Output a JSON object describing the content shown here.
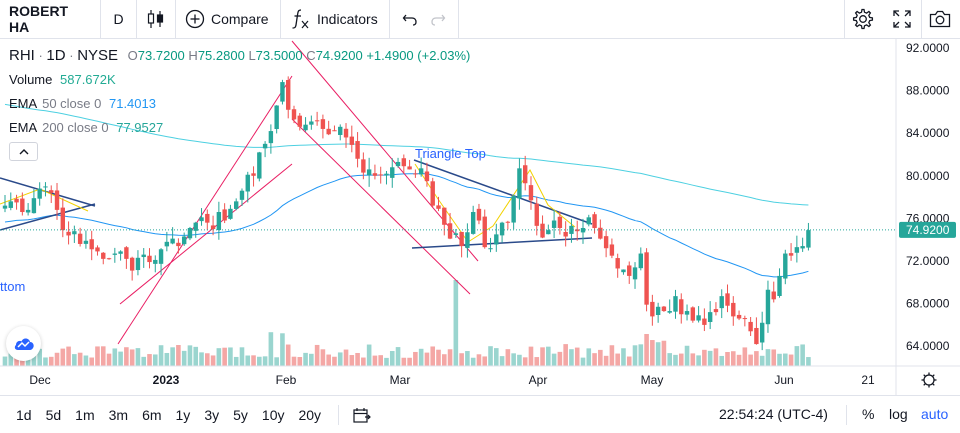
{
  "toolbar": {
    "symbol": "ROBERT HA",
    "interval": "D",
    "compare_label": "Compare",
    "indicators_label": "Indicators",
    "icons": [
      "candles-icon",
      "plus-circle-icon",
      "fx-icon",
      "undo-icon",
      "redo-icon",
      "settings-icon",
      "fullscreen-icon",
      "camera-icon"
    ]
  },
  "legend": {
    "ticker": "RHI",
    "interval": "1D",
    "exchange": "NYSE",
    "open_label": "O",
    "open": "73.7200",
    "high_label": "H",
    "high": "75.2800",
    "low_label": "L",
    "low": "73.5000",
    "close_label": "C",
    "close": "74.9200",
    "change": "+1.4900 (+2.03%)",
    "volume_label": "Volume",
    "volume": "587.672K",
    "ema50_label": "EMA",
    "ema50_params": "50 close 0",
    "ema50": "71.4013",
    "ema200_label": "EMA",
    "ema200_params": "200 close 0",
    "ema200": "77.9527"
  },
  "annotations": {
    "triangle_top": "Triangle Top",
    "bottom_fragment": "ttom"
  },
  "price_axis": {
    "labels": [
      "92.0000",
      "88.0000",
      "84.0000",
      "80.0000",
      "76.0000",
      "72.0000",
      "68.0000",
      "64.0000"
    ],
    "last_price": "74.9200"
  },
  "time_axis": {
    "labels": [
      {
        "text": "Dec",
        "bold": false
      },
      {
        "text": "2023",
        "bold": true
      },
      {
        "text": "Feb",
        "bold": false
      },
      {
        "text": "Mar",
        "bold": false
      },
      {
        "text": "Apr",
        "bold": false
      },
      {
        "text": "May",
        "bold": false
      },
      {
        "text": "Jun",
        "bold": false
      },
      {
        "text": "21",
        "bold": false
      }
    ]
  },
  "colors": {
    "up": "#26a69a",
    "down": "#ef5350",
    "ema50": "#2196f3",
    "ema200": "#4dd0e1",
    "pattern": "#e91e63",
    "accent": "#2962ff"
  },
  "bottom": {
    "ranges": [
      "1d",
      "5d",
      "1m",
      "3m",
      "6m",
      "1y",
      "3y",
      "5y",
      "10y",
      "20y"
    ],
    "clock": "22:54:24 (UTC-4)",
    "percent": "%",
    "log": "log",
    "auto": "auto"
  },
  "chart_data": {
    "type": "candlestick",
    "symbol": "RHI",
    "ylim": [
      62,
      93
    ],
    "x": [
      "2022-11-21",
      "2022-11-22",
      "2022-11-23",
      "2022-11-25",
      "2022-11-28",
      "2022-11-29",
      "2022-11-30",
      "2022-12-01",
      "2022-12-02",
      "2022-12-05",
      "2022-12-06",
      "2022-12-07",
      "2022-12-08",
      "2022-12-09",
      "2022-12-12",
      "2022-12-13",
      "2022-12-14",
      "2022-12-15",
      "2022-12-16",
      "2022-12-19",
      "2022-12-20",
      "2022-12-21",
      "2022-12-22",
      "2022-12-23",
      "2022-12-27",
      "2022-12-28",
      "2022-12-29",
      "2022-12-30",
      "2023-01-03",
      "2023-01-04",
      "2023-01-05",
      "2023-01-06",
      "2023-01-09",
      "2023-01-10",
      "2023-01-11",
      "2023-01-12",
      "2023-01-13",
      "2023-01-17",
      "2023-01-18",
      "2023-01-19",
      "2023-01-20",
      "2023-01-23",
      "2023-01-24",
      "2023-01-25",
      "2023-01-26",
      "2023-01-27",
      "2023-01-30",
      "2023-01-31",
      "2023-02-01",
      "2023-02-02",
      "2023-02-03",
      "2023-02-06",
      "2023-02-07",
      "2023-02-08",
      "2023-02-09",
      "2023-02-10",
      "2023-02-13",
      "2023-02-14",
      "2023-02-15",
      "2023-02-16",
      "2023-02-17",
      "2023-02-21",
      "2023-02-22",
      "2023-02-23",
      "2023-02-24",
      "2023-02-27",
      "2023-02-28",
      "2023-03-01",
      "2023-03-02",
      "2023-03-03",
      "2023-03-06",
      "2023-03-07",
      "2023-03-08",
      "2023-03-09",
      "2023-03-10",
      "2023-03-13",
      "2023-03-14",
      "2023-03-15",
      "2023-03-16",
      "2023-03-17",
      "2023-03-20",
      "2023-03-21",
      "2023-03-22",
      "2023-03-23",
      "2023-03-24",
      "2023-03-27",
      "2023-03-28",
      "2023-03-29",
      "2023-03-30",
      "2023-03-31",
      "2023-04-03",
      "2023-04-04",
      "2023-04-05",
      "2023-04-06",
      "2023-04-10",
      "2023-04-11",
      "2023-04-12",
      "2023-04-13",
      "2023-04-14",
      "2023-04-17",
      "2023-04-18",
      "2023-04-19",
      "2023-04-20",
      "2023-04-21",
      "2023-04-24",
      "2023-04-25",
      "2023-04-26",
      "2023-04-27",
      "2023-04-28",
      "2023-05-01",
      "2023-05-02",
      "2023-05-03",
      "2023-05-04",
      "2023-05-05",
      "2023-05-08",
      "2023-05-09",
      "2023-05-10",
      "2023-05-11",
      "2023-05-12",
      "2023-05-15",
      "2023-05-16",
      "2023-05-17",
      "2023-05-18",
      "2023-05-19",
      "2023-05-22",
      "2023-05-23",
      "2023-05-24",
      "2023-05-25",
      "2023-05-26",
      "2023-05-30",
      "2023-05-31",
      "2023-06-01",
      "2023-06-02",
      "2023-06-05",
      "2023-06-06",
      "2023-06-07",
      "2023-06-08",
      "2023-06-09",
      "2023-06-12",
      "2023-06-13"
    ],
    "close": [
      77.2,
      77.6,
      77.5,
      76.6,
      76.8,
      77.9,
      78.8,
      79.0,
      78.4,
      76.8,
      74.9,
      74.4,
      74.8,
      73.6,
      73.9,
      73.1,
      72.9,
      72.2,
      72.2,
      72.7,
      72.9,
      72.2,
      71.1,
      72.3,
      72.6,
      71.9,
      72.1,
      73.1,
      73.8,
      74.1,
      73.4,
      74.3,
      75.1,
      75.6,
      76.1,
      75.6,
      75.0,
      76.6,
      75.8,
      76.9,
      77.6,
      78.6,
      80.1,
      80.0,
      82.2,
      83.0,
      84.2,
      86.6,
      88.8,
      86.2,
      85.3,
      84.6,
      84.8,
      85.1,
      85.2,
      84.4,
      83.9,
      84.2,
      84.6,
      83.6,
      82.9,
      81.6,
      80.3,
      80.6,
      80.0,
      80.1,
      80.2,
      80.8,
      81.3,
      80.9,
      80.6,
      80.2,
      80.7,
      79.5,
      77.2,
      76.9,
      75.4,
      74.1,
      74.6,
      73.4,
      74.7,
      76.6,
      75.8,
      73.3,
      73.2,
      74.5,
      75.6,
      75.6,
      78.1,
      80.7,
      79.3,
      77.7,
      75.3,
      74.2,
      74.9,
      75.8,
      75.1,
      74.3,
      75.3,
      74.8,
      75.1,
      76.1,
      75.1,
      74.1,
      73.2,
      72.5,
      71.3,
      71.2,
      70.6,
      71.4,
      72.7,
      67.9,
      66.8,
      67.7,
      67.3,
      67.3,
      68.7,
      67.0,
      67.3,
      66.4,
      66.9,
      66.0,
      67.2,
      67.2,
      68.7,
      67.8,
      66.8,
      66.6,
      66.6,
      65.4,
      64.2,
      66.2,
      69.3,
      68.4,
      70.6,
      72.7,
      72.5,
      73.3,
      73.4,
      74.9
    ]
  }
}
